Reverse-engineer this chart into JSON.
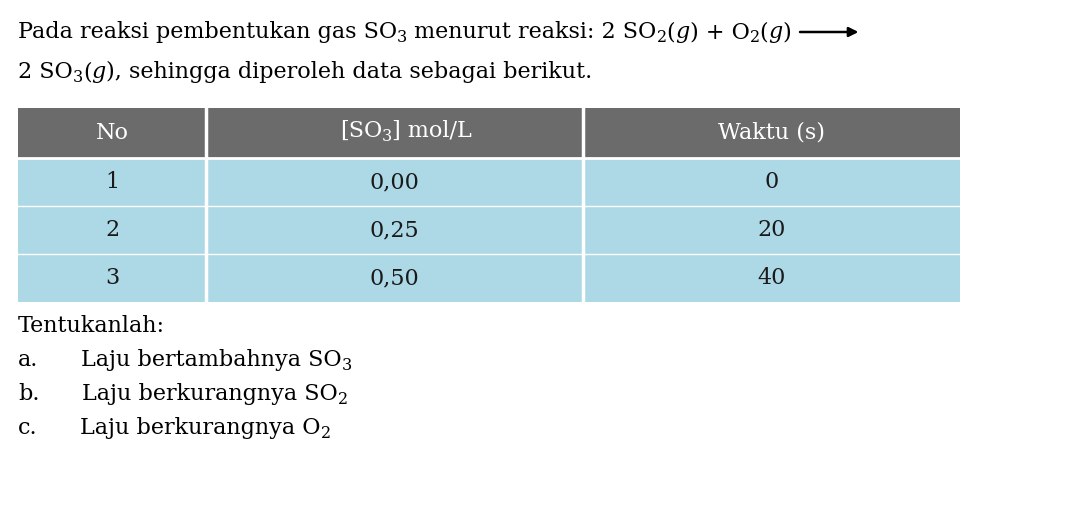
{
  "bg_color": "#ffffff",
  "header_bg": "#6b6b6b",
  "header_text_color": "#ffffff",
  "row_bg": "#add8e6",
  "row_text_color": "#1a1a1a",
  "rows": [
    [
      "1",
      "0,00",
      "0"
    ],
    [
      "2",
      "0,25",
      "20"
    ],
    [
      "3",
      "0,50",
      "40"
    ]
  ],
  "question_header": "Tentukanlah:",
  "questions": [
    [
      "a.",
      "Laju bertambahnya SO",
      "3"
    ],
    [
      "b.",
      "Laju berkurangnya SO",
      "2"
    ],
    [
      "c.",
      "Laju berkurangnya O",
      "2"
    ]
  ],
  "font_size": 16
}
